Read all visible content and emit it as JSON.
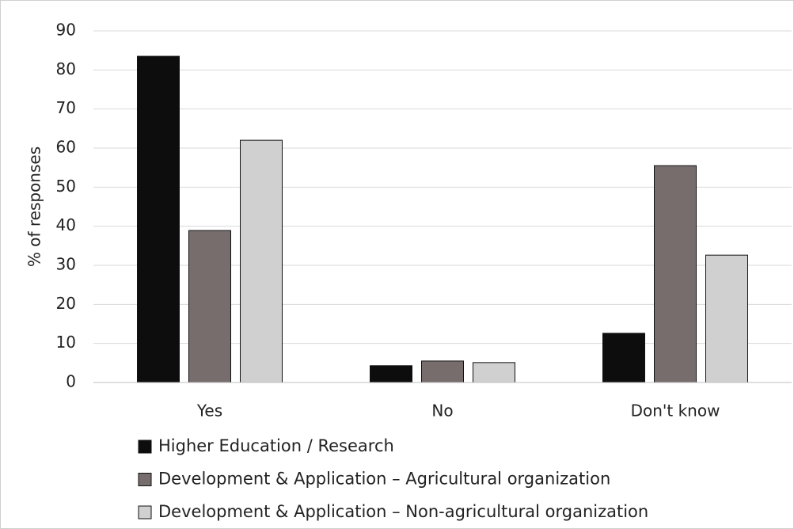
{
  "chart_data": {
    "type": "bar",
    "y_label": "% of responses",
    "categories": [
      "Yes",
      "No",
      "Don't know"
    ],
    "series": [
      {
        "name": "Higher Education / Research",
        "color": "#0d0d0d",
        "values": [
          83.5,
          4.3,
          12.6
        ]
      },
      {
        "name": "Development & Application – Agricultural organization",
        "color": "#776d6d",
        "values": [
          38.9,
          5.5,
          55.5
        ]
      },
      {
        "name": "Development & Application – Non-agricultural organization",
        "color": "#d0d0d0",
        "values": [
          62.0,
          5.1,
          32.6
        ]
      }
    ],
    "ylim": [
      0,
      90
    ],
    "yticks": [
      0,
      10,
      20,
      30,
      40,
      50,
      60,
      70,
      80,
      90
    ],
    "grid": true,
    "legend": "bottom"
  }
}
